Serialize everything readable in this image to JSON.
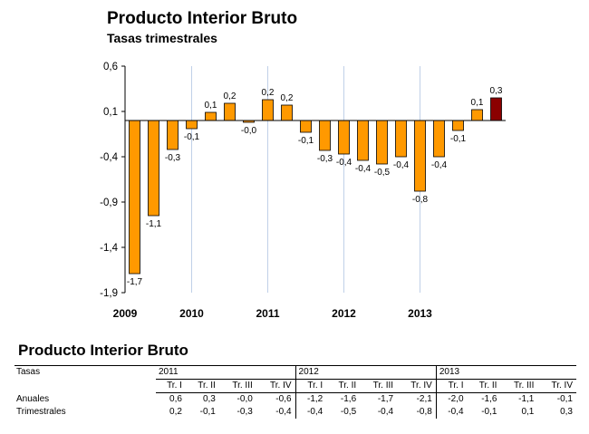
{
  "chart_data": {
    "type": "bar",
    "title": "Producto Interior Bruto",
    "subtitle": "Tasas trimestrales",
    "ylim": [
      -1.9,
      0.6
    ],
    "yticks": [
      "0,6",
      "0,1",
      "-0,4",
      "-0,9",
      "-1,4",
      "-1,9"
    ],
    "ytick_values": [
      0.6,
      0.1,
      -0.4,
      -0.9,
      -1.4,
      -1.9
    ],
    "year_labels": [
      "2009",
      "2010",
      "2011",
      "2012",
      "2013"
    ],
    "values": [
      -1.7,
      -1.1,
      -0.3,
      -0.1,
      0.1,
      0.2,
      -0.0,
      0.2,
      0.2,
      -0.1,
      -0.3,
      -0.4,
      -0.4,
      -0.5,
      -0.4,
      -0.8,
      -0.4,
      -0.1,
      0.1,
      0.3
    ],
    "bar_heights": [
      -1.69,
      -1.05,
      -0.32,
      -0.09,
      0.09,
      0.19,
      -0.02,
      0.23,
      0.17,
      -0.13,
      -0.33,
      -0.37,
      -0.44,
      -0.48,
      -0.4,
      -0.78,
      -0.4,
      -0.11,
      0.12,
      0.25
    ],
    "data_labels": [
      "-1,7",
      "-1,1",
      "-0,3",
      "-0,1",
      "0,1",
      "0,2",
      "-0,0",
      "0,2",
      "0,2",
      "-0,1",
      "-0,3",
      "-0,4",
      "-0,4",
      "-0,5",
      "-0,4",
      "-0,8",
      "-0,4",
      "-0,1",
      "0,1",
      "0,3"
    ],
    "colors": {
      "bar": "#ff9900",
      "bar_highlight": "#8b0000",
      "border": "#000000",
      "grid": "#c0d0e8"
    },
    "highlight_index": 19
  },
  "table": {
    "title": "Producto Interior Bruto",
    "header_label": "Tasas",
    "years": [
      "2011",
      "2012",
      "2013"
    ],
    "quarters": [
      "Tr. I",
      "Tr. II",
      "Tr. III",
      "Tr. IV",
      "Tr. I",
      "Tr. II",
      "Tr. III",
      "Tr. IV",
      "Tr. I",
      "Tr. II",
      "Tr. III",
      "Tr. IV"
    ],
    "rows": [
      {
        "label": "Anuales",
        "values": [
          "0,6",
          "0,3",
          "-0,0",
          "-0,6",
          "-1,2",
          "-1,6",
          "-1,7",
          "-2,1",
          "-2,0",
          "-1,6",
          "-1,1",
          "-0,1"
        ]
      },
      {
        "label": "Trimestrales",
        "values": [
          "0,2",
          "-0,1",
          "-0,3",
          "-0,4",
          "-0,4",
          "-0,5",
          "-0,4",
          "-0,8",
          "-0,4",
          "-0,1",
          "0,1",
          "0,3"
        ]
      }
    ]
  }
}
